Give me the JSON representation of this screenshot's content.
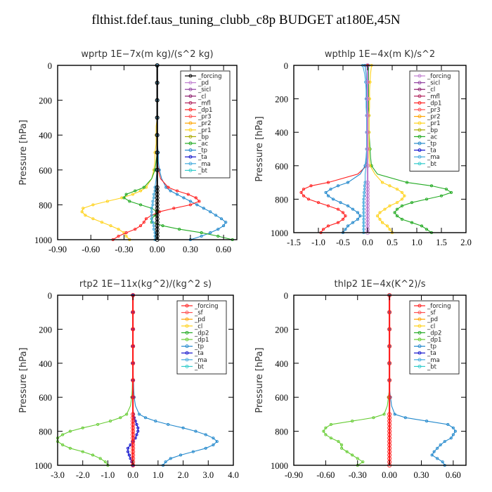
{
  "page": {
    "title": "flthist.fdef.taus_tuning_clubb_c8p  BUDGET at180E,45N"
  },
  "chart_data": [
    {
      "type": "line",
      "title": "wprtp   1E−7x(m kg)/(s^2 kg)",
      "ylabel": "Pressure [hPa]",
      "xlim": [
        -0.9,
        0.72
      ],
      "ylim": [
        1000,
        0
      ],
      "xticks": [
        "-0.90",
        "-0.60",
        "-0.30",
        "0.00",
        "0.30",
        "0.60"
      ],
      "xtick_values": [
        -0.9,
        -0.6,
        -0.3,
        0.0,
        0.3,
        0.6
      ],
      "yticks": [
        "0",
        "200",
        "400",
        "600",
        "800",
        "1000"
      ],
      "ytick_values": [
        0,
        200,
        400,
        600,
        800,
        1000
      ],
      "legend": [
        "_forcing",
        "_pd",
        "_sicl",
        "_cl",
        "_mfl",
        "_dp1",
        "_pr3",
        "_pr2",
        "_pr1",
        "_bp",
        "_ac",
        "_tp",
        "_ta",
        "_ma",
        "_bt"
      ],
      "legend_colors": [
        "#000000",
        "#c080d0",
        "#9040a0",
        "#8b1a6b",
        "#b0205a",
        "#ff2020",
        "#ff5050",
        "#ffa500",
        "#ffd21a",
        "#aaaa00",
        "#22aa22",
        "#2288cc",
        "#1111cc",
        "#44aadd",
        "#33cccc"
      ],
      "pressure": [
        0,
        50,
        100,
        150,
        200,
        250,
        300,
        350,
        400,
        450,
        500,
        550,
        600,
        650,
        700,
        720,
        740,
        760,
        780,
        800,
        820,
        840,
        860,
        880,
        900,
        920,
        940,
        960,
        980,
        1000
      ],
      "series": [
        {
          "name": "_tp",
          "color": "#2288cc",
          "values": [
            0,
            0,
            0,
            0,
            0,
            0,
            0,
            0,
            0,
            0,
            0.01,
            0.01,
            0.02,
            0.04,
            0.08,
            0.12,
            0.18,
            0.24,
            0.3,
            0.36,
            0.42,
            0.48,
            0.53,
            0.58,
            0.62,
            0.6,
            0.55,
            0.48,
            0.4,
            0.3
          ]
        },
        {
          "name": "_pr1",
          "color": "#ffd21a",
          "values": [
            0,
            0,
            0,
            0,
            0,
            0,
            0,
            -0.01,
            -0.01,
            -0.01,
            -0.02,
            -0.02,
            -0.03,
            -0.05,
            -0.1,
            -0.15,
            -0.22,
            -0.32,
            -0.45,
            -0.58,
            -0.67,
            -0.68,
            -0.65,
            -0.58,
            -0.5,
            -0.42,
            -0.35,
            -0.3,
            -0.28,
            -0.25
          ]
        },
        {
          "name": "_ac",
          "color": "#22aa22",
          "values": [
            0,
            0,
            0,
            0,
            0,
            0,
            0,
            0,
            0,
            0,
            0,
            -0.01,
            -0.02,
            -0.05,
            -0.12,
            -0.2,
            -0.28,
            -0.3,
            -0.25,
            -0.15,
            -0.05,
            0,
            -0.02,
            -0.05,
            -0.05,
            0.05,
            0.2,
            0.4,
            0.55,
            0.68
          ]
        },
        {
          "name": "_dp1",
          "color": "#ff2020",
          "values": [
            0,
            0,
            0,
            0,
            0,
            0,
            0,
            0,
            0,
            0,
            0,
            0,
            0.01,
            0.03,
            0.1,
            0.18,
            0.28,
            0.35,
            0.38,
            0.3,
            0.15,
            0.02,
            -0.05,
            -0.1,
            -0.12,
            -0.15,
            -0.2,
            -0.28,
            -0.35,
            -0.4
          ]
        },
        {
          "name": "_ma",
          "color": "#44aadd",
          "values": [
            0,
            0,
            0,
            0,
            0,
            0,
            0,
            0,
            0,
            0,
            0,
            0,
            0,
            -0.01,
            -0.02,
            -0.02,
            -0.03,
            -0.03,
            -0.04,
            -0.04,
            -0.05,
            -0.05,
            -0.05,
            -0.05,
            -0.04,
            -0.03,
            -0.03,
            -0.02,
            -0.02,
            -0.02
          ]
        },
        {
          "name": "_forcing",
          "color": "#000000",
          "values": [
            0,
            0,
            0,
            0,
            0,
            0,
            0,
            0,
            0,
            0,
            0,
            0,
            0,
            0,
            0,
            0,
            0,
            0,
            0,
            0,
            0,
            0,
            0,
            0,
            0,
            0,
            0,
            0,
            0,
            0
          ]
        }
      ]
    },
    {
      "type": "line",
      "title": "wpthlp   1E−4x(m K)/s^2",
      "ylabel": "Pressure [hPa]",
      "xlim": [
        -1.5,
        2.0
      ],
      "ylim": [
        1000,
        0
      ],
      "xticks": [
        "-1.5",
        "-1.0",
        "-0.5",
        "0.0",
        "0.5",
        "1.0",
        "1.5",
        "2.0"
      ],
      "xtick_values": [
        -1.5,
        -1.0,
        -0.5,
        0.0,
        0.5,
        1.0,
        1.5,
        2.0
      ],
      "yticks": [
        "0",
        "200",
        "400",
        "600",
        "800",
        "1000"
      ],
      "ytick_values": [
        0,
        200,
        400,
        600,
        800,
        1000
      ],
      "legend": [
        "_forcing",
        "_sicl",
        "_cl",
        "_mfl",
        "_dp1",
        "_pr3",
        "_pr2",
        "_pr1",
        "_bp",
        "_ac",
        "_tp",
        "_ta",
        "_ma",
        "_bt"
      ],
      "legend_colors": [
        "#c080d0",
        "#9040a0",
        "#8b1a6b",
        "#b0205a",
        "#ff2020",
        "#ff5050",
        "#ffa500",
        "#ffd21a",
        "#aaaa00",
        "#22aa22",
        "#2288cc",
        "#1111cc",
        "#44aadd",
        "#33cccc"
      ],
      "pressure": [
        0,
        50,
        100,
        150,
        200,
        250,
        300,
        350,
        400,
        450,
        500,
        550,
        600,
        650,
        700,
        720,
        740,
        760,
        780,
        800,
        820,
        840,
        860,
        880,
        900,
        920,
        940,
        960,
        980,
        1000
      ],
      "series": [
        {
          "name": "_ac",
          "color": "#22aa22",
          "values": [
            0.02,
            0.02,
            0.02,
            0.02,
            0.02,
            0.02,
            0.03,
            0.03,
            0.03,
            0.04,
            0.05,
            0.06,
            0.08,
            0.2,
            0.8,
            1.3,
            1.6,
            1.7,
            1.5,
            1.2,
            0.9,
            0.7,
            0.6,
            0.55,
            0.6,
            0.7,
            0.9,
            1.1,
            1.2,
            1.3
          ]
        },
        {
          "name": "_dp1",
          "color": "#ff2020",
          "values": [
            0,
            0,
            0,
            0,
            0,
            0,
            0,
            0,
            0,
            0,
            0,
            0,
            -0.02,
            -0.2,
            -0.8,
            -1.15,
            -1.3,
            -1.35,
            -1.3,
            -1.2,
            -1.0,
            -0.8,
            -0.6,
            -0.5,
            -0.45,
            -0.5,
            -0.6,
            -0.8,
            -0.9,
            -0.95
          ]
        },
        {
          "name": "_tp",
          "color": "#2288cc",
          "values": [
            -0.05,
            -0.03,
            -0.02,
            -0.02,
            -0.02,
            -0.02,
            -0.02,
            -0.02,
            -0.02,
            -0.02,
            -0.02,
            -0.03,
            -0.05,
            -0.15,
            -0.4,
            -0.6,
            -0.75,
            -0.85,
            -0.8,
            -0.7,
            -0.55,
            -0.4,
            -0.3,
            -0.2,
            -0.15,
            -0.2,
            -0.3,
            -0.4,
            -0.45,
            -0.5
          ]
        },
        {
          "name": "_pr1",
          "color": "#ffd21a",
          "values": [
            0.08,
            0.06,
            0.05,
            0.04,
            0.04,
            0.04,
            0.03,
            0.03,
            0.03,
            0.03,
            0.03,
            0.03,
            0.05,
            0.15,
            0.3,
            0.45,
            0.6,
            0.7,
            0.75,
            0.7,
            0.6,
            0.45,
            0.35,
            0.25,
            0.2,
            0.25,
            0.3,
            0.4,
            0.45,
            0.5
          ]
        },
        {
          "name": "_ma",
          "color": "#44aadd",
          "values": [
            -0.1,
            -0.06,
            -0.04,
            -0.03,
            -0.03,
            -0.03,
            -0.02,
            -0.02,
            -0.02,
            -0.02,
            -0.02,
            -0.02,
            -0.03,
            -0.05,
            -0.05,
            -0.06,
            -0.06,
            -0.07,
            -0.07,
            -0.08,
            -0.08,
            -0.08,
            -0.08,
            -0.08,
            -0.08,
            -0.08,
            -0.08,
            -0.08,
            -0.08,
            -0.08
          ]
        },
        {
          "name": "_forcing",
          "color": "#c080d0",
          "values": [
            0,
            0,
            0,
            0,
            0,
            0,
            0,
            0,
            0,
            0,
            0,
            0,
            0,
            0,
            0,
            0,
            0,
            0,
            0,
            0,
            0,
            0,
            0,
            0,
            0,
            0,
            0,
            0,
            0,
            0
          ]
        }
      ]
    },
    {
      "type": "line",
      "title": "rtp2   1E−11x(kg^2)/(kg^2 s)",
      "ylabel": "Pressure [hPa]",
      "xlim": [
        -3.0,
        4.0
      ],
      "ylim": [
        1000,
        0
      ],
      "xticks": [
        "-3.0",
        "-2.0",
        "-1.0",
        "0.0",
        "1.0",
        "2.0",
        "3.0",
        "4.0"
      ],
      "xtick_values": [
        -3.0,
        -2.0,
        -1.0,
        0.0,
        1.0,
        2.0,
        3.0,
        4.0
      ],
      "yticks": [
        "0",
        "200",
        "400",
        "600",
        "800",
        "1000"
      ],
      "ytick_values": [
        0,
        200,
        400,
        600,
        800,
        1000
      ],
      "legend": [
        "_forcing",
        "_sf",
        "_pd",
        "_cl",
        "_dp2",
        "_dp1",
        "_tp",
        "_ta",
        "_ma",
        "_bt"
      ],
      "legend_colors": [
        "#ff2020",
        "#ff5050",
        "#ffa500",
        "#ffd21a",
        "#22aa22",
        "#66cc33",
        "#2288cc",
        "#1111cc",
        "#44aadd",
        "#33cccc"
      ],
      "pressure": [
        0,
        50,
        100,
        150,
        200,
        250,
        300,
        350,
        400,
        450,
        500,
        550,
        600,
        650,
        700,
        720,
        740,
        760,
        780,
        800,
        820,
        840,
        860,
        880,
        900,
        920,
        940,
        960,
        980,
        1000
      ],
      "series": [
        {
          "name": "_dp1",
          "color": "#66cc33",
          "values": [
            0,
            0,
            0,
            0,
            0,
            0,
            0,
            0,
            0,
            0,
            -0.02,
            -0.03,
            -0.05,
            -0.1,
            -0.25,
            -0.5,
            -0.9,
            -1.4,
            -2.0,
            -2.5,
            -2.8,
            -3.0,
            -3.0,
            -2.8,
            -2.5,
            -2.0,
            -1.6,
            -1.3,
            -1.1,
            -1.0
          ]
        },
        {
          "name": "_tp",
          "color": "#2288cc",
          "values": [
            0,
            0,
            0,
            0,
            0,
            0,
            0,
            0,
            0,
            0,
            0.02,
            0.03,
            0.05,
            0.1,
            0.25,
            0.5,
            0.9,
            1.4,
            2.0,
            2.5,
            2.9,
            3.2,
            3.35,
            3.2,
            2.9,
            2.4,
            1.9,
            1.5,
            1.3,
            1.2
          ]
        },
        {
          "name": "_ta",
          "color": "#1111cc",
          "values": [
            0,
            0,
            0,
            0,
            0,
            0,
            0,
            0,
            0,
            0,
            0,
            0,
            0,
            0,
            0.02,
            0.05,
            0.1,
            0.15,
            0.2,
            0.2,
            0.15,
            0.1,
            0,
            -0.1,
            -0.2,
            -0.2,
            -0.15,
            -0.1,
            -0.05,
            0
          ]
        },
        {
          "name": "_forcing",
          "color": "#ff2020",
          "values": [
            0,
            0,
            0,
            0,
            0,
            0,
            0,
            0,
            0,
            0,
            0,
            0,
            0,
            0,
            0,
            0,
            0,
            0,
            0,
            0,
            0,
            0,
            0,
            0,
            0,
            0,
            0,
            0,
            0,
            0
          ]
        }
      ]
    },
    {
      "type": "line",
      "title": "thlp2   1E−4x(K^2)/s",
      "ylabel": "Pressure [hPa]",
      "xlim": [
        -0.9,
        0.72
      ],
      "ylim": [
        1000,
        0
      ],
      "xticks": [
        "-0.90",
        "-0.60",
        "-0.30",
        "0.00",
        "0.30",
        "0.60"
      ],
      "xtick_values": [
        -0.9,
        -0.6,
        -0.3,
        0.0,
        0.3,
        0.6
      ],
      "yticks": [
        "0",
        "200",
        "400",
        "600",
        "800",
        "1000"
      ],
      "ytick_values": [
        0,
        200,
        400,
        600,
        800,
        1000
      ],
      "legend": [
        "_forcing",
        "_sf",
        "_pd",
        "_cl",
        "_dp2",
        "_dp1",
        "_tp",
        "_ta",
        "_ma",
        "_bt"
      ],
      "legend_colors": [
        "#ff2020",
        "#ff5050",
        "#ffa500",
        "#ffd21a",
        "#22aa22",
        "#66cc33",
        "#2288cc",
        "#1111cc",
        "#44aadd",
        "#33cccc"
      ],
      "pressure": [
        0,
        50,
        100,
        150,
        200,
        250,
        300,
        350,
        400,
        450,
        500,
        550,
        600,
        650,
        700,
        720,
        740,
        760,
        780,
        800,
        820,
        840,
        860,
        880,
        900,
        920,
        940,
        960,
        980,
        1000
      ],
      "series": [
        {
          "name": "_dp1",
          "color": "#66cc33",
          "values": [
            0,
            0,
            0,
            0,
            0,
            0,
            0,
            0,
            0,
            0,
            0,
            0,
            -0.01,
            -0.02,
            -0.05,
            -0.15,
            -0.35,
            -0.55,
            -0.6,
            -0.62,
            -0.6,
            -0.55,
            -0.48,
            -0.45,
            -0.45,
            -0.4,
            -0.35,
            -0.3,
            -0.25,
            -0.3
          ]
        },
        {
          "name": "_tp",
          "color": "#2288cc",
          "values": [
            0,
            0,
            0,
            0,
            0,
            0,
            0,
            0,
            0,
            0,
            0,
            0,
            0.01,
            0.02,
            0.05,
            0.15,
            0.35,
            0.55,
            0.6,
            0.62,
            0.6,
            0.58,
            0.52,
            0.48,
            0.45,
            0.42,
            0.4,
            0.45,
            0.5,
            0.52
          ]
        },
        {
          "name": "_forcing",
          "color": "#ff2020",
          "values": [
            0,
            0,
            0,
            0,
            0,
            0,
            0,
            0,
            0,
            0,
            0,
            0,
            0,
            0,
            0,
            0,
            0,
            0,
            0,
            0,
            0,
            0,
            0,
            0,
            0,
            0,
            0,
            0,
            0,
            0
          ]
        }
      ]
    }
  ]
}
